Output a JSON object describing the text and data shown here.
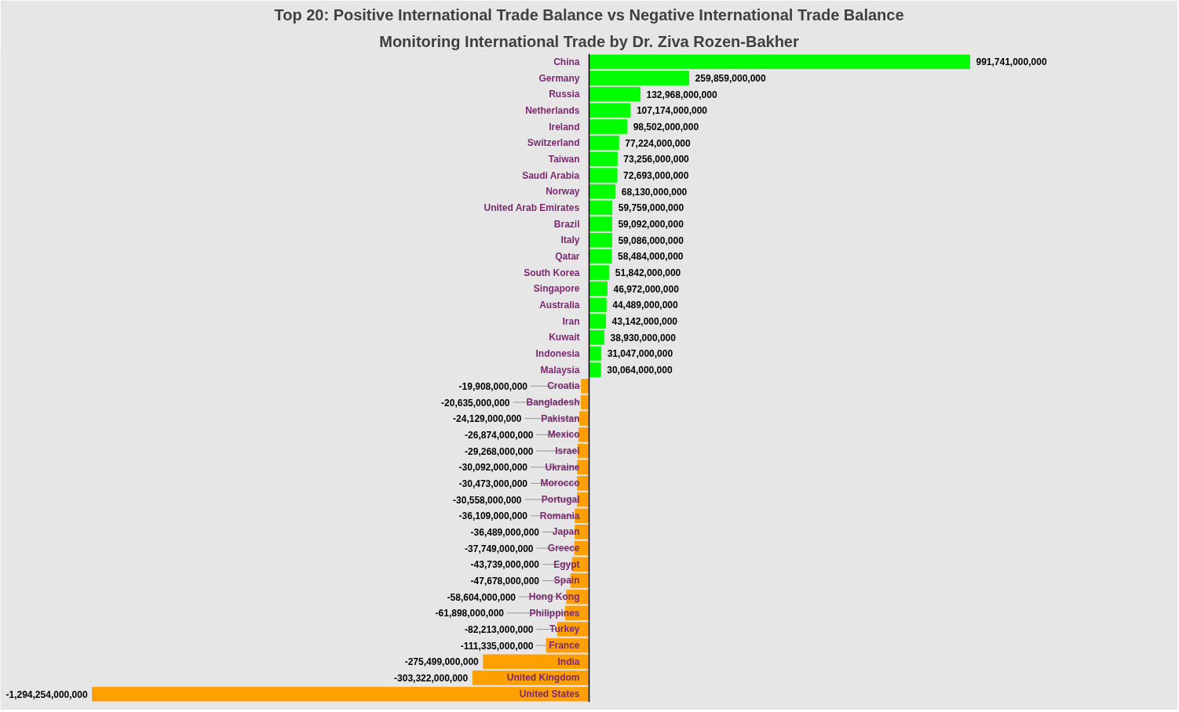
{
  "chart_data": {
    "type": "bar",
    "orientation": "horizontal",
    "tick_labels": "y",
    "value_labels": [
      "991,741,000,000",
      "259,859,000,000",
      "132,968,000,000",
      "107,174,000,000",
      "98,502,000,000",
      "77,224,000,000",
      "73,256,000,000",
      "72,693,000,000",
      "68,130,000,000",
      "59,759,000,000",
      "59,092,000,000",
      "59,086,000,000",
      "58,484,000,000",
      "51,842,000,000",
      "46,972,000,000",
      "44,489,000,000",
      "43,142,000,000",
      "38,930,000,000",
      "31,047,000,000",
      "30,064,000,000",
      "-19,908,000,000",
      "-20,635,000,000",
      "-24,129,000,000",
      "-26,874,000,000",
      "-29,268,000,000",
      "-30,092,000,000",
      "-30,473,000,000",
      "-30,558,000,000",
      "-36,109,000,000",
      "-36,489,000,000",
      "-37,749,000,000",
      "-43,739,000,000",
      "-47,678,000,000",
      "-58,604,000,000",
      "-61,898,000,000",
      "-82,213,000,000",
      "-111,335,000,000",
      "-275,499,000,000",
      "-303,322,000,000",
      "-1,294,254,000,000"
    ],
    "title": "Top 20: Positive International Trade Balance vs Negative International Trade Balance",
    "subtitle": "Monitoring International Trade by Dr. Ziva Rozen-Bakher",
    "categories": [
      "China",
      "Germany",
      "Russia",
      "Netherlands",
      "Ireland",
      "Switzerland",
      "Taiwan",
      "Saudi Arabia",
      "Norway",
      "United Arab Emirates",
      "Brazil",
      "Italy",
      "Qatar",
      "South Korea",
      "Singapore",
      "Australia",
      "Iran",
      "Kuwait",
      "Indonesia",
      "Malaysia",
      "Croatia",
      "Bangladesh",
      "Pakistan",
      "Mexico",
      "Israel",
      "Ukraine",
      "Morocco",
      "Portugal",
      "Romania",
      "Japan",
      "Greece",
      "Egypt",
      "Spain",
      "Hong Kong",
      "Philippines",
      "Turkey",
      "France",
      "India",
      "United Kingdom",
      "United States"
    ],
    "values": [
      991741000000,
      259859000000,
      132968000000,
      107174000000,
      98502000000,
      77224000000,
      73256000000,
      72693000000,
      68130000000,
      59759000000,
      59092000000,
      59086000000,
      58484000000,
      51842000000,
      46972000000,
      44489000000,
      43142000000,
      38930000000,
      31047000000,
      30064000000,
      -19908000000,
      -20635000000,
      -24129000000,
      -26874000000,
      -29268000000,
      -30092000000,
      -30473000000,
      -30558000000,
      -36109000000,
      -36489000000,
      -37749000000,
      -43739000000,
      -47678000000,
      -58604000000,
      -61898000000,
      -82213000000,
      -111335000000,
      -275499000000,
      -303322000000,
      -1294254000000
    ],
    "colors": [
      "#00ff00",
      "#00ff00",
      "#00ff00",
      "#00ff00",
      "#00ff00",
      "#00ff00",
      "#00ff00",
      "#00ff00",
      "#00ff00",
      "#00ff00",
      "#00ff00",
      "#00ff00",
      "#00ff00",
      "#00ff00",
      "#00ff00",
      "#00ff00",
      "#00ff00",
      "#00ff00",
      "#00ff00",
      "#00ff00",
      "#ffa000",
      "#ffa000",
      "#ffa000",
      "#ffa000",
      "#ffa000",
      "#ffa000",
      "#ffa000",
      "#ffa000",
      "#ffa000",
      "#ffa000",
      "#ffa000",
      "#ffa000",
      "#ffa000",
      "#ffa000",
      "#ffa000",
      "#ffa000",
      "#ffa000",
      "#ffa000",
      "#ffa000",
      "#ffa000"
    ]
  }
}
